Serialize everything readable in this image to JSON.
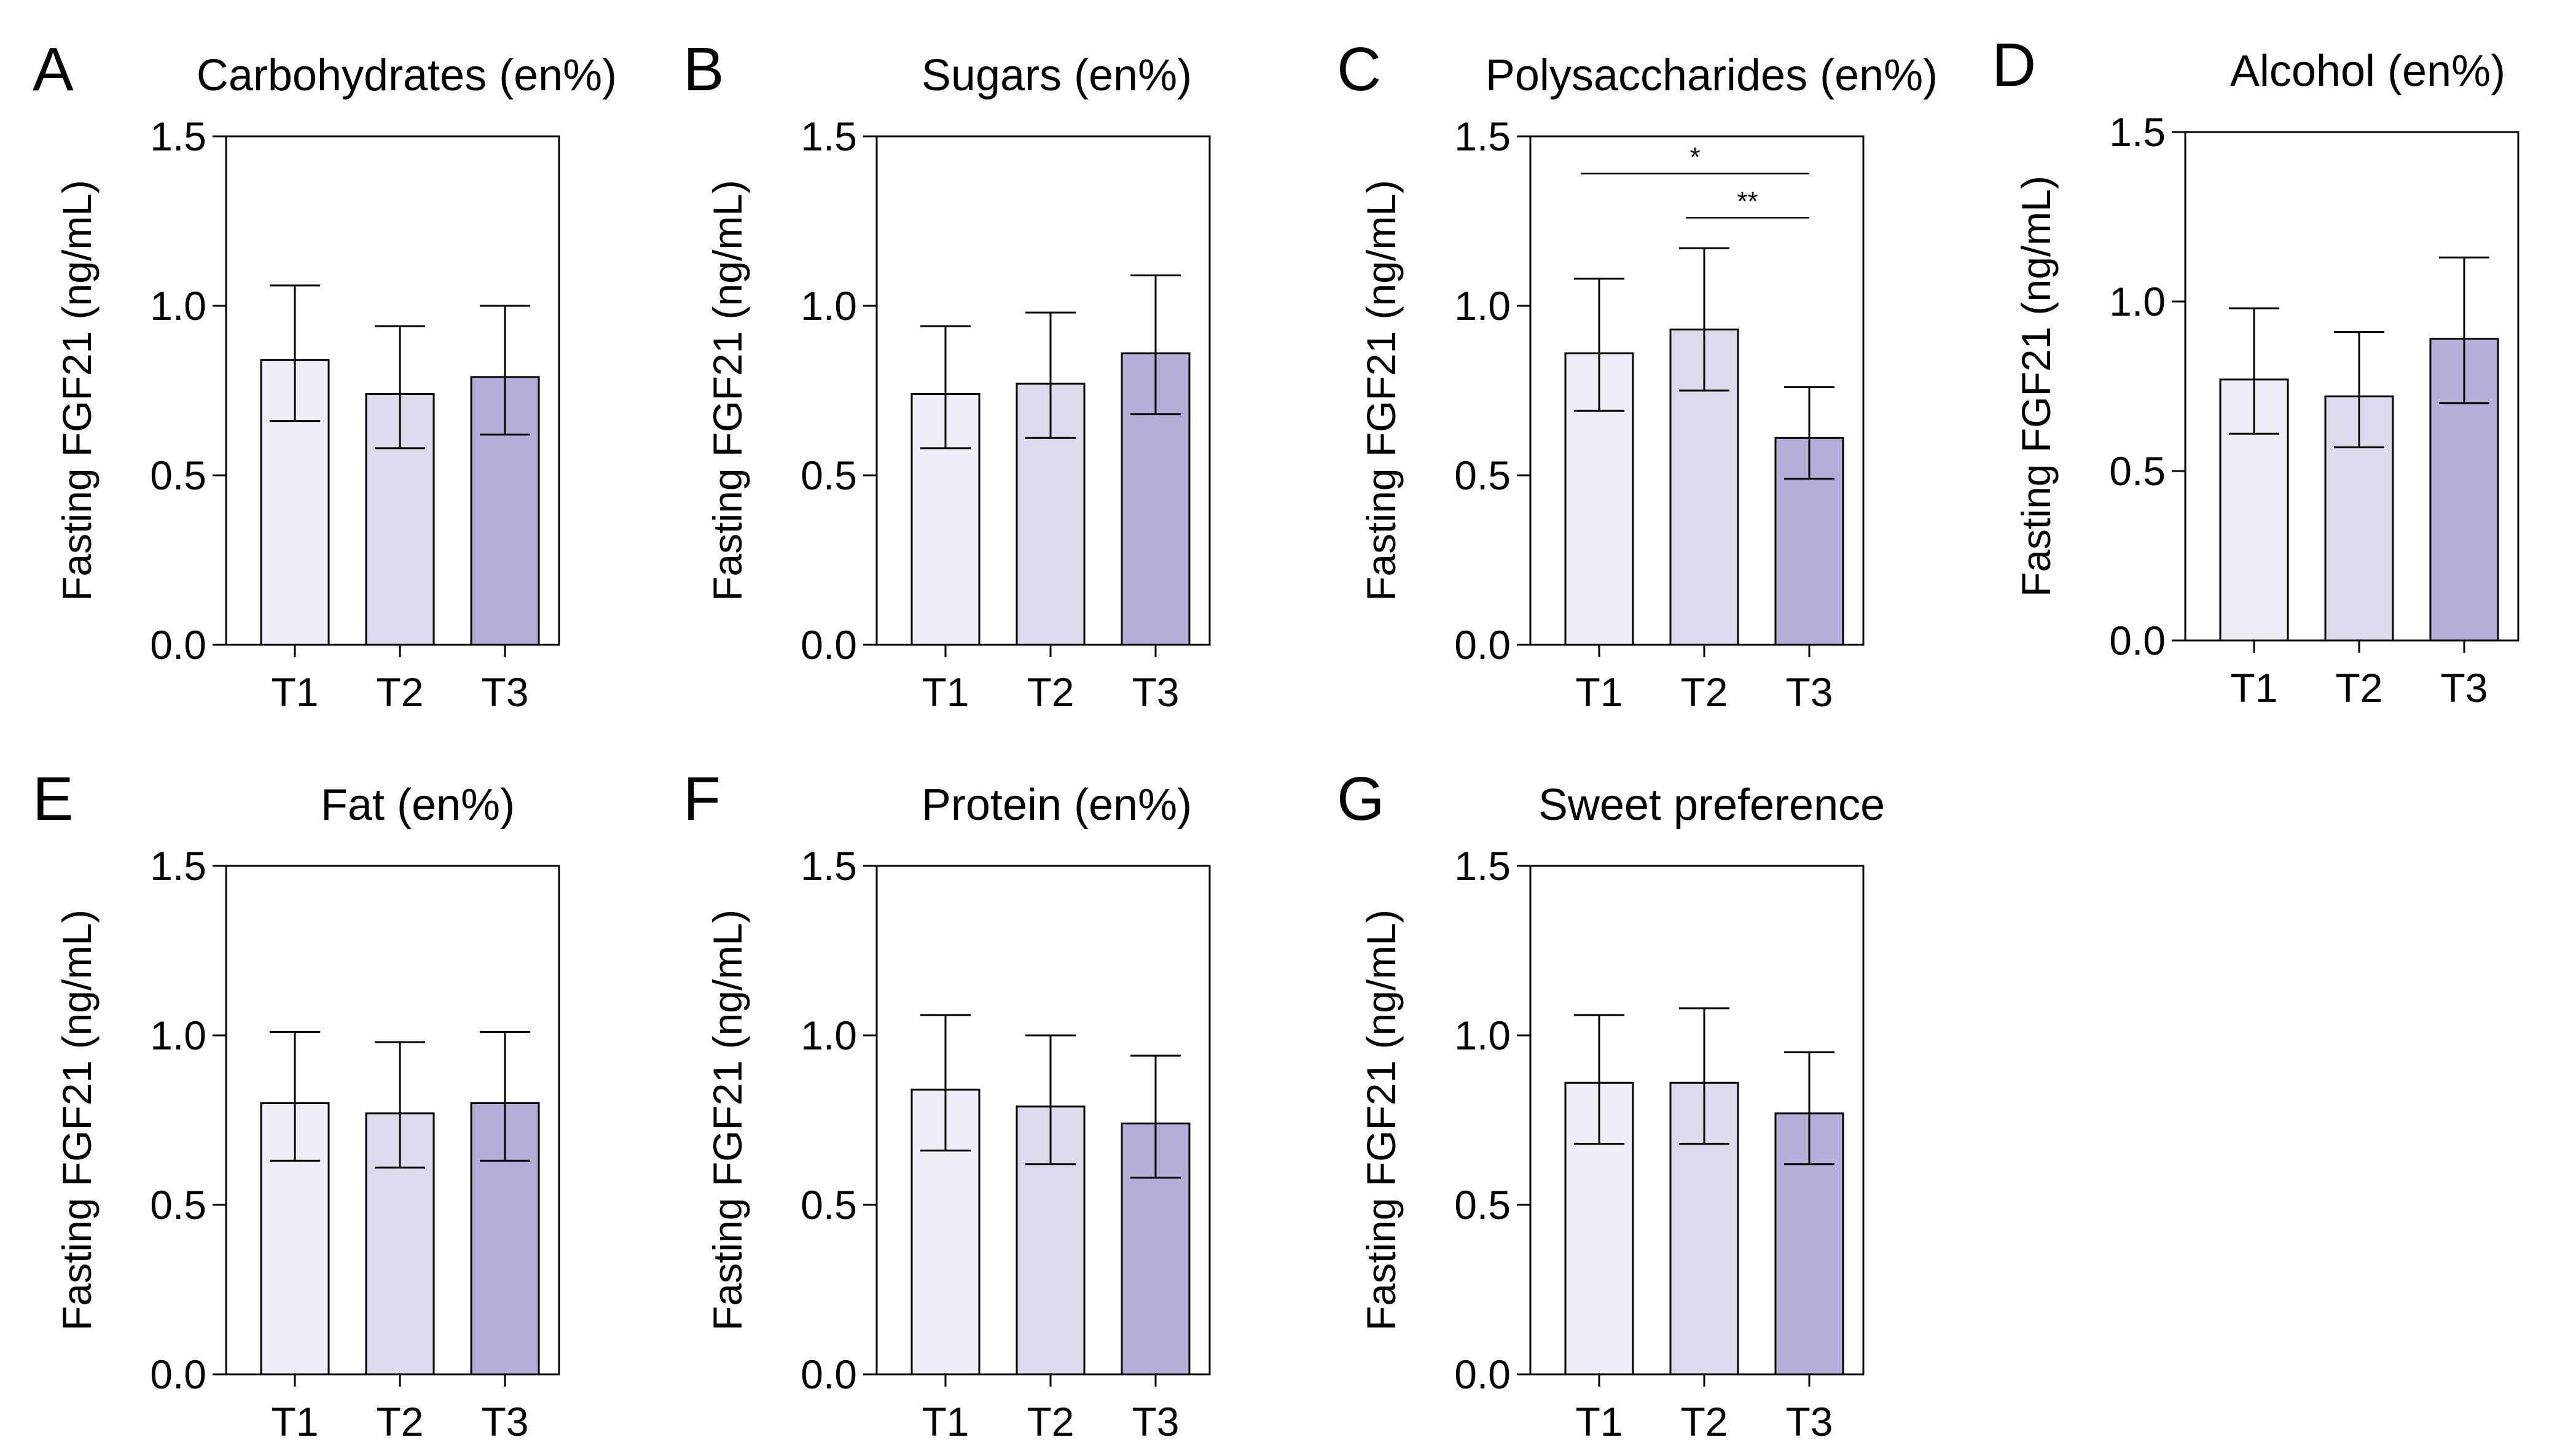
{
  "colors": {
    "T1": "#efedf6",
    "T2": "#dddaee",
    "T3": "#b4afd9"
  },
  "chart_data": [
    {
      "panel": "A",
      "type": "bar",
      "title": "Carbohydrates (en%)",
      "ylabel": "Fasting FGF21 (ng/mL)",
      "xlabel": "",
      "categories": [
        "T1",
        "T2",
        "T3"
      ],
      "values": [
        0.84,
        0.74,
        0.79
      ],
      "error_low": [
        0.66,
        0.58,
        0.62
      ],
      "error_high": [
        1.06,
        0.94,
        1.0
      ],
      "ylim": [
        0,
        1.5
      ],
      "yticks": [
        "0.0",
        "0.5",
        "1.0",
        "1.5"
      ],
      "significance": []
    },
    {
      "panel": "B",
      "type": "bar",
      "title": "Sugars (en%)",
      "ylabel": "Fasting FGF21 (ng/mL)",
      "xlabel": "",
      "categories": [
        "T1",
        "T2",
        "T3"
      ],
      "values": [
        0.74,
        0.77,
        0.86
      ],
      "error_low": [
        0.58,
        0.61,
        0.68
      ],
      "error_high": [
        0.94,
        0.98,
        1.09
      ],
      "ylim": [
        0,
        1.5
      ],
      "yticks": [
        "0.0",
        "0.5",
        "1.0",
        "1.5"
      ],
      "significance": []
    },
    {
      "panel": "C",
      "type": "bar",
      "title": "Polysaccharides (en%)",
      "ylabel": "Fasting FGF21 (ng/mL)",
      "xlabel": "",
      "categories": [
        "T1",
        "T2",
        "T3"
      ],
      "values": [
        0.86,
        0.93,
        0.61
      ],
      "error_low": [
        0.69,
        0.75,
        0.49
      ],
      "error_high": [
        1.08,
        1.17,
        0.76
      ],
      "ylim": [
        0,
        1.5
      ],
      "yticks": [
        "0.0",
        "0.5",
        "1.0",
        "1.5"
      ],
      "significance": [
        {
          "from": "T1",
          "to": "T3",
          "y": 1.39,
          "label": "*"
        },
        {
          "from": "T2",
          "to": "T3",
          "y": 1.26,
          "label": "**"
        }
      ]
    },
    {
      "panel": "D",
      "type": "bar",
      "title": "Alcohol (en%)",
      "ylabel": "Fasting FGF21 (ng/mL)",
      "xlabel": "",
      "categories": [
        "T1",
        "T2",
        "T3"
      ],
      "values": [
        0.77,
        0.72,
        0.89
      ],
      "error_low": [
        0.61,
        0.57,
        0.7
      ],
      "error_high": [
        0.98,
        0.91,
        1.13
      ],
      "ylim": [
        0,
        1.5
      ],
      "yticks": [
        "0.0",
        "0.5",
        "1.0",
        "1.5"
      ],
      "significance": []
    },
    {
      "panel": "E",
      "type": "bar",
      "title": "Fat (en%)",
      "ylabel": "Fasting FGF21 (ng/mL)",
      "xlabel": "",
      "categories": [
        "T1",
        "T2",
        "T3"
      ],
      "values": [
        0.8,
        0.77,
        0.8
      ],
      "error_low": [
        0.63,
        0.61,
        0.63
      ],
      "error_high": [
        1.01,
        0.98,
        1.01
      ],
      "ylim": [
        0,
        1.5
      ],
      "yticks": [
        "0.0",
        "0.5",
        "1.0",
        "1.5"
      ],
      "significance": []
    },
    {
      "panel": "F",
      "type": "bar",
      "title": "Protein (en%)",
      "ylabel": "Fasting FGF21 (ng/mL)",
      "xlabel": "",
      "categories": [
        "T1",
        "T2",
        "T3"
      ],
      "values": [
        0.84,
        0.79,
        0.74
      ],
      "error_low": [
        0.66,
        0.62,
        0.58
      ],
      "error_high": [
        1.06,
        1.0,
        0.94
      ],
      "ylim": [
        0,
        1.5
      ],
      "yticks": [
        "0.0",
        "0.5",
        "1.0",
        "1.5"
      ],
      "significance": []
    },
    {
      "panel": "G",
      "type": "bar",
      "title": "Sweet preference",
      "ylabel": "Fasting FGF21 (ng/mL)",
      "xlabel": "",
      "categories": [
        "T1",
        "T2",
        "T3"
      ],
      "values": [
        0.86,
        0.86,
        0.77
      ],
      "error_low": [
        0.68,
        0.68,
        0.62
      ],
      "error_high": [
        1.06,
        1.08,
        0.95
      ],
      "ylim": [
        0,
        1.5
      ],
      "yticks": [
        "0.0",
        "0.5",
        "1.0",
        "1.5"
      ],
      "significance": []
    }
  ]
}
